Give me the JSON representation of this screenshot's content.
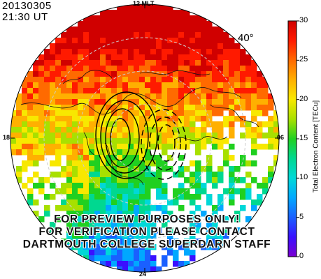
{
  "header": {
    "date": "20130305",
    "time": "21:30 UT"
  },
  "mlt_labels": {
    "top": "12 MLT",
    "left": "18",
    "right": "06",
    "bottom": "24"
  },
  "latitude_label": "40°",
  "colorbar": {
    "title": "Total Electron Content [TECu]",
    "ticks": [
      "0",
      "5",
      "10",
      "15",
      "20",
      "25",
      "30"
    ],
    "min": 0,
    "max": 30,
    "colors": [
      "#7a00d0",
      "#3a10ff",
      "#1a60ff",
      "#00a8ff",
      "#00d8d8",
      "#00d890",
      "#20d020",
      "#a8e000",
      "#f8e800",
      "#ffb000",
      "#ff6a00",
      "#ff1a00",
      "#d00000"
    ]
  },
  "watermark": [
    "FOR PREVIEW PURPOSES ONLY!",
    "FOR VERIFICATION PLEASE CONTACT",
    "DARTMOUTH COLLEGE SUPERDARN STAFF"
  ]
}
